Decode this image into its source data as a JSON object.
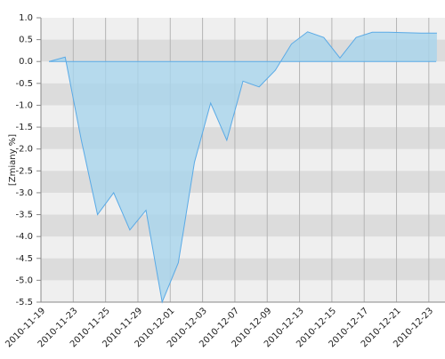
{
  "chart_data": {
    "type": "area",
    "y_label": "[Zmiany %]",
    "categories": [
      "2010-11-19",
      null,
      "2010-11-23",
      null,
      "2010-11-25",
      null,
      "2010-11-29",
      null,
      "2010-12-01",
      null,
      "2010-12-03",
      null,
      "2010-12-07",
      null,
      "2010-12-09",
      null,
      "2010-12-13",
      null,
      "2010-12-15",
      null,
      "2010-12-17",
      null,
      "2010-12-21",
      null,
      "2010-12-23"
    ],
    "series": [
      {
        "name": "Zmiany",
        "color": "#5aaae6",
        "values": [
          0.0,
          0.1,
          -1.8,
          -3.5,
          -3.0,
          -3.85,
          -3.4,
          -5.5,
          -4.6,
          -2.3,
          -0.95,
          -1.8,
          -0.45,
          -0.58,
          -0.2,
          0.4,
          0.68,
          0.55,
          0.08,
          0.55,
          0.67,
          0.67,
          0.66,
          0.65,
          0.65
        ]
      }
    ],
    "ylim": [
      -5.5,
      1.0
    ],
    "yticks": [
      {
        "value": 1.0,
        "label": "1.0"
      },
      {
        "value": 0.5,
        "label": "0.5"
      },
      {
        "value": 0.0,
        "label": "0.0"
      },
      {
        "value": -0.5,
        "label": "-0.5"
      },
      {
        "value": -1.0,
        "label": "-1.0"
      },
      {
        "value": -1.5,
        "label": "-1.5"
      },
      {
        "value": -2.0,
        "label": "-2.0"
      },
      {
        "value": -2.5,
        "label": "-2.5"
      },
      {
        "value": -3.0,
        "label": "-3.0"
      },
      {
        "value": -3.5,
        "label": "-3.5"
      },
      {
        "value": -4.0,
        "label": "-4.0"
      },
      {
        "value": -4.5,
        "label": "-4.5"
      },
      {
        "value": -5.0,
        "label": "-5.0"
      },
      {
        "value": -5.5,
        "label": "-5.5"
      }
    ],
    "grid": true
  }
}
